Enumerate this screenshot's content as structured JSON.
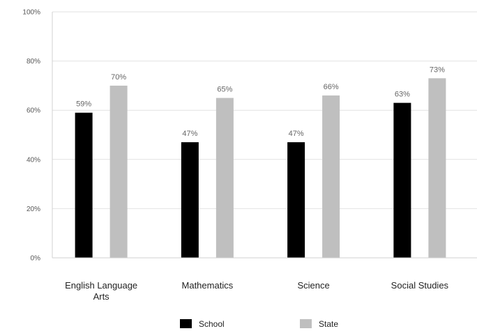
{
  "chart_data": {
    "type": "bar",
    "title": "",
    "xlabel": "",
    "ylabel": "",
    "categories": [
      [
        "English Language",
        "Arts"
      ],
      [
        "Mathematics"
      ],
      [
        "Science"
      ],
      [
        "Social Studies"
      ]
    ],
    "series": [
      {
        "name": "School",
        "values": [
          59,
          47,
          47,
          63
        ],
        "labels": [
          "59%",
          "47%",
          "47%",
          "63%"
        ],
        "color": "#000000"
      },
      {
        "name": "State",
        "values": [
          70,
          65,
          66,
          73
        ],
        "labels": [
          "70%",
          "65%",
          "66%",
          "73%"
        ],
        "color": "#bfbfbf"
      }
    ],
    "ylim": [
      0,
      100
    ],
    "yticks": [
      0,
      20,
      40,
      60,
      80,
      100
    ],
    "ytick_labels": [
      "0%",
      "20%",
      "40%",
      "60%",
      "80%",
      "100%"
    ],
    "grid": true,
    "legend_position": "bottom"
  }
}
